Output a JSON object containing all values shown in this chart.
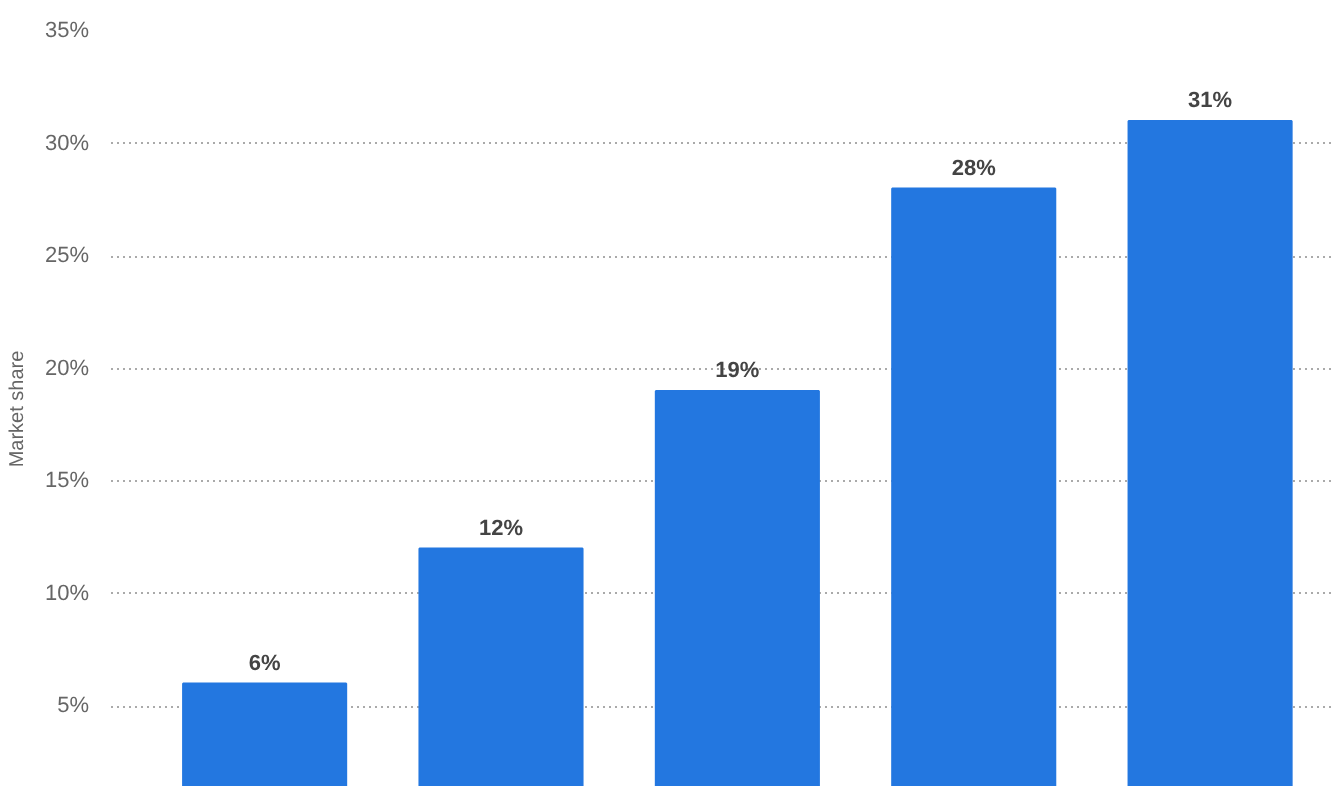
{
  "chart_data": {
    "type": "bar",
    "ylabel": "Market share",
    "categories": [
      null,
      null,
      null,
      null,
      null
    ],
    "values": [
      6,
      12,
      19,
      28,
      31
    ],
    "value_labels": [
      "6%",
      "12%",
      "19%",
      "28%",
      "31%"
    ],
    "color": "#2377e0",
    "ylim": [
      1.4,
      35
    ],
    "yticks": [
      {
        "value": 5,
        "label": "5%"
      },
      {
        "value": 10,
        "label": "10%"
      },
      {
        "value": 15,
        "label": "15%"
      },
      {
        "value": 20,
        "label": "20%"
      },
      {
        "value": 25,
        "label": "25%"
      },
      {
        "value": 30,
        "label": "30%"
      },
      {
        "value": 35,
        "label": "35%"
      }
    ],
    "grid": "y"
  }
}
